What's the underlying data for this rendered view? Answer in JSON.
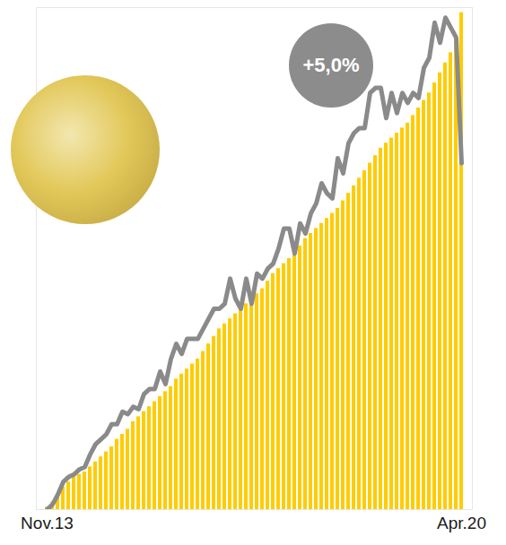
{
  "chart_data": {
    "type": "bar",
    "annotation": "+5,0%",
    "categories": [
      "Nov.13",
      null,
      null,
      null,
      null,
      null,
      null,
      null,
      null,
      null,
      null,
      null,
      null,
      null,
      null,
      null,
      null,
      null,
      null,
      null,
      null,
      null,
      null,
      null,
      null,
      null,
      null,
      null,
      null,
      null,
      null,
      null,
      null,
      null,
      null,
      null,
      null,
      null,
      null,
      null,
      null,
      null,
      null,
      null,
      null,
      null,
      null,
      null,
      null,
      null,
      null,
      null,
      null,
      null,
      null,
      null,
      null,
      null,
      null,
      null,
      null,
      null,
      null,
      null,
      null,
      null,
      null,
      null,
      null,
      null,
      null,
      null,
      null,
      null,
      null,
      null,
      null,
      "Apr.20"
    ],
    "series": [
      {
        "type": "bar",
        "color": "#ffcc00",
        "values": [
          0.5,
          1.5,
          3,
          4.5,
          5.5,
          6.5,
          7,
          7.5,
          8.5,
          9.5,
          10.5,
          11.5,
          12.5,
          14,
          15,
          16,
          17.5,
          18.5,
          19.5,
          20.5,
          21.5,
          22.5,
          23.5,
          24.5,
          26,
          27,
          28,
          29,
          30,
          31.5,
          33,
          34.5,
          36,
          37,
          38,
          39,
          40,
          41,
          42,
          43,
          44,
          45.5,
          47,
          48,
          49,
          50,
          51,
          52.5,
          54,
          55,
          56,
          57,
          58,
          59,
          60,
          61.5,
          63,
          64.5,
          66,
          67.5,
          69,
          70.5,
          72,
          73,
          74,
          75,
          76,
          77,
          78.5,
          80,
          81.5,
          83,
          85,
          87,
          89,
          91,
          93,
          99
        ]
      },
      {
        "type": "line",
        "color": "#8a8a8a",
        "values": [
          0,
          1,
          3,
          5.5,
          6.5,
          7,
          8,
          8.5,
          11,
          13,
          14,
          15,
          17,
          17,
          19.5,
          19,
          20.5,
          20,
          23,
          24,
          24,
          27.5,
          25,
          30,
          33,
          31,
          34,
          34,
          34,
          36,
          38,
          40,
          40,
          41,
          46,
          42,
          40,
          46,
          41,
          47,
          46,
          48,
          49,
          52,
          56,
          56,
          51,
          57,
          55,
          59,
          61,
          65,
          63,
          62,
          70,
          67,
          73,
          75,
          76,
          76,
          83,
          84,
          84,
          78,
          83,
          79,
          83,
          81,
          83,
          82,
          88,
          90,
          97,
          93,
          98,
          96,
          94,
          69
        ]
      }
    ],
    "ylim": [
      0,
      100
    ],
    "yticks": [],
    "grid": false,
    "tick_labels": "x"
  }
}
